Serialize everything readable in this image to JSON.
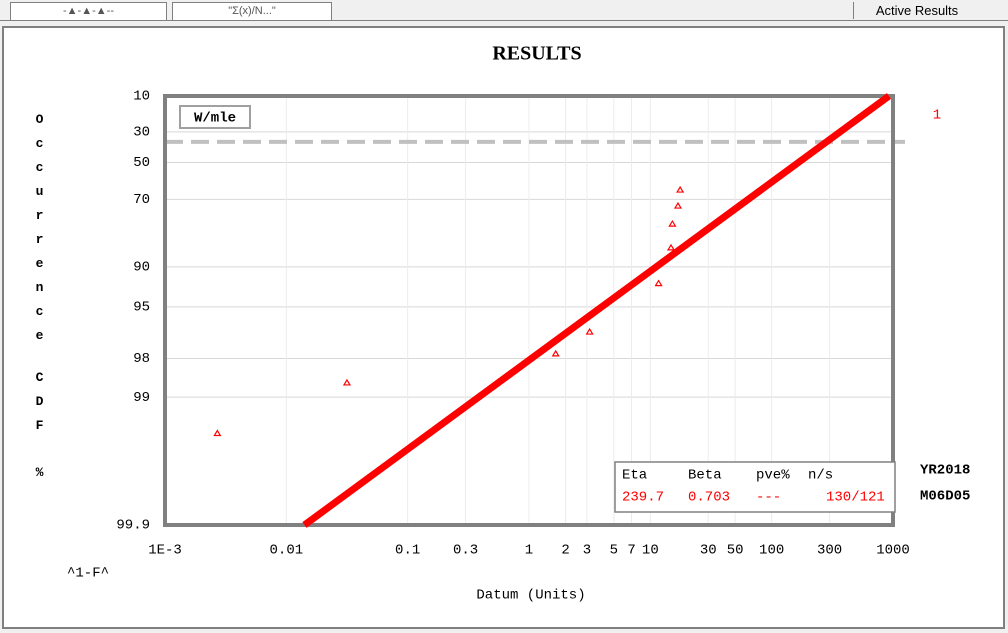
{
  "tabs": [
    "-▲-▲-▲--",
    "\"Σ(x)/N...\""
  ],
  "active_results": "Active Results",
  "chart_data": {
    "type": "scatter",
    "title": "RESULTS",
    "y_label": [
      "Occurrence",
      "CDF",
      "%"
    ],
    "y_label_bottom": "^1-F^",
    "x_label": "Datum (Units)",
    "xscale": "log",
    "yscale": "weibull",
    "grid": true,
    "xlim": [
      0.001,
      1000
    ],
    "ylim": [
      10,
      99.9
    ],
    "xticks": [
      {
        "value": 0.001,
        "label": "1E-3"
      },
      0.01,
      0.1,
      0.3,
      1,
      2,
      3,
      5,
      7,
      10,
      30,
      50,
      100,
      300,
      1000
    ],
    "yticks": [
      10,
      30,
      50,
      70,
      90,
      95,
      98,
      99,
      99.9
    ],
    "series": [
      {
        "color": "#ff0000",
        "x": [
          0.0027,
          0.0316,
          1.66,
          3.16,
          11.7,
          14.8,
          15.2,
          16.9,
          17.6
        ],
        "values": [
          99.48,
          98.71,
          97.83,
          96.8,
          92.5,
          86.2,
          79.6,
          72.9,
          65.6
        ]
      }
    ],
    "fit_line": {
      "color": "#ff0000",
      "x": [
        0.0141,
        927
      ],
      "values": [
        99.9,
        10
      ]
    },
    "hline": {
      "value": 36.6,
      "color": "#c0c0c0"
    },
    "legend": "W/mle",
    "set_label": "1",
    "results_table": {
      "headers": [
        "Eta",
        "Beta",
        "pve%",
        "n/s"
      ],
      "values": [
        "239.7",
        "0.703",
        "---",
        "130/121"
      ]
    },
    "date": [
      "YR2018",
      "M06D05"
    ]
  }
}
